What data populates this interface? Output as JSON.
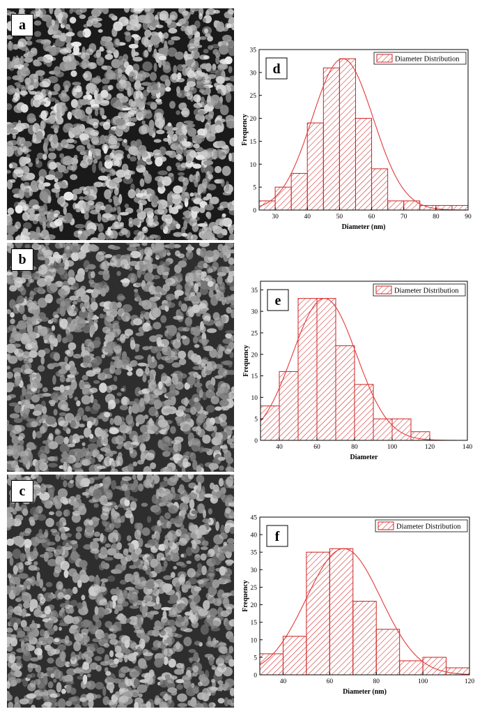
{
  "micrographs": [
    {
      "label": "a"
    },
    {
      "label": "b"
    },
    {
      "label": "c"
    }
  ],
  "chart_data": [
    {
      "type": "bar",
      "panel_label": "d",
      "xlabel": "Diameter (nm)",
      "ylabel": "Frequency",
      "legend": "Diameter Distribution",
      "legend_position": "top-right",
      "xlim": [
        25,
        90
      ],
      "ylim": [
        0,
        35
      ],
      "xticks": [
        30,
        40,
        50,
        60,
        70,
        80,
        90
      ],
      "yticks": [
        0,
        5,
        10,
        15,
        20,
        25,
        30,
        35
      ],
      "bin_edges": [
        25,
        30,
        35,
        40,
        45,
        50,
        55,
        60,
        65,
        70,
        75,
        80,
        85,
        90
      ],
      "values": [
        2,
        5,
        8,
        19,
        31,
        33,
        20,
        9,
        2,
        2,
        1,
        1,
        1
      ],
      "fit": {
        "type": "normal",
        "mean": 51,
        "sd": 9.5,
        "peak": 33
      },
      "colors": {
        "bar": "#cc2222",
        "fit": "#e23a3a"
      }
    },
    {
      "type": "bar",
      "panel_label": "e",
      "xlabel": "Diameter",
      "ylabel": "Frequency",
      "legend": "Diameter Distribution",
      "legend_position": "top-right",
      "xlim": [
        30,
        140
      ],
      "ylim": [
        0,
        37
      ],
      "xticks": [
        40,
        60,
        80,
        100,
        120,
        140
      ],
      "yticks": [
        0,
        5,
        10,
        15,
        20,
        25,
        30,
        35
      ],
      "bin_edges": [
        30,
        40,
        50,
        60,
        70,
        80,
        90,
        100,
        110,
        120
      ],
      "values": [
        8,
        16,
        33,
        33,
        22,
        13,
        5,
        5,
        2
      ],
      "fit": {
        "type": "normal",
        "mean": 64,
        "sd": 17,
        "peak": 33
      },
      "colors": {
        "bar": "#cc2222",
        "fit": "#e23a3a"
      }
    },
    {
      "type": "bar",
      "panel_label": "f",
      "xlabel": "Diameter (nm)",
      "ylabel": "Frequency",
      "legend": "Diameter Distribution",
      "legend_position": "top-right",
      "xlim": [
        30,
        120
      ],
      "ylim": [
        0,
        45
      ],
      "xticks": [
        40,
        60,
        80,
        100,
        120
      ],
      "yticks": [
        0,
        5,
        10,
        15,
        20,
        25,
        30,
        35,
        40,
        45
      ],
      "bin_edges": [
        30,
        40,
        50,
        60,
        70,
        80,
        90,
        100,
        110,
        120
      ],
      "values": [
        6,
        11,
        35,
        36,
        21,
        13,
        4,
        5,
        2
      ],
      "fit": {
        "type": "normal",
        "mean": 66,
        "sd": 16,
        "peak": 36
      },
      "colors": {
        "bar": "#cc2222",
        "fit": "#e23a3a"
      }
    }
  ]
}
